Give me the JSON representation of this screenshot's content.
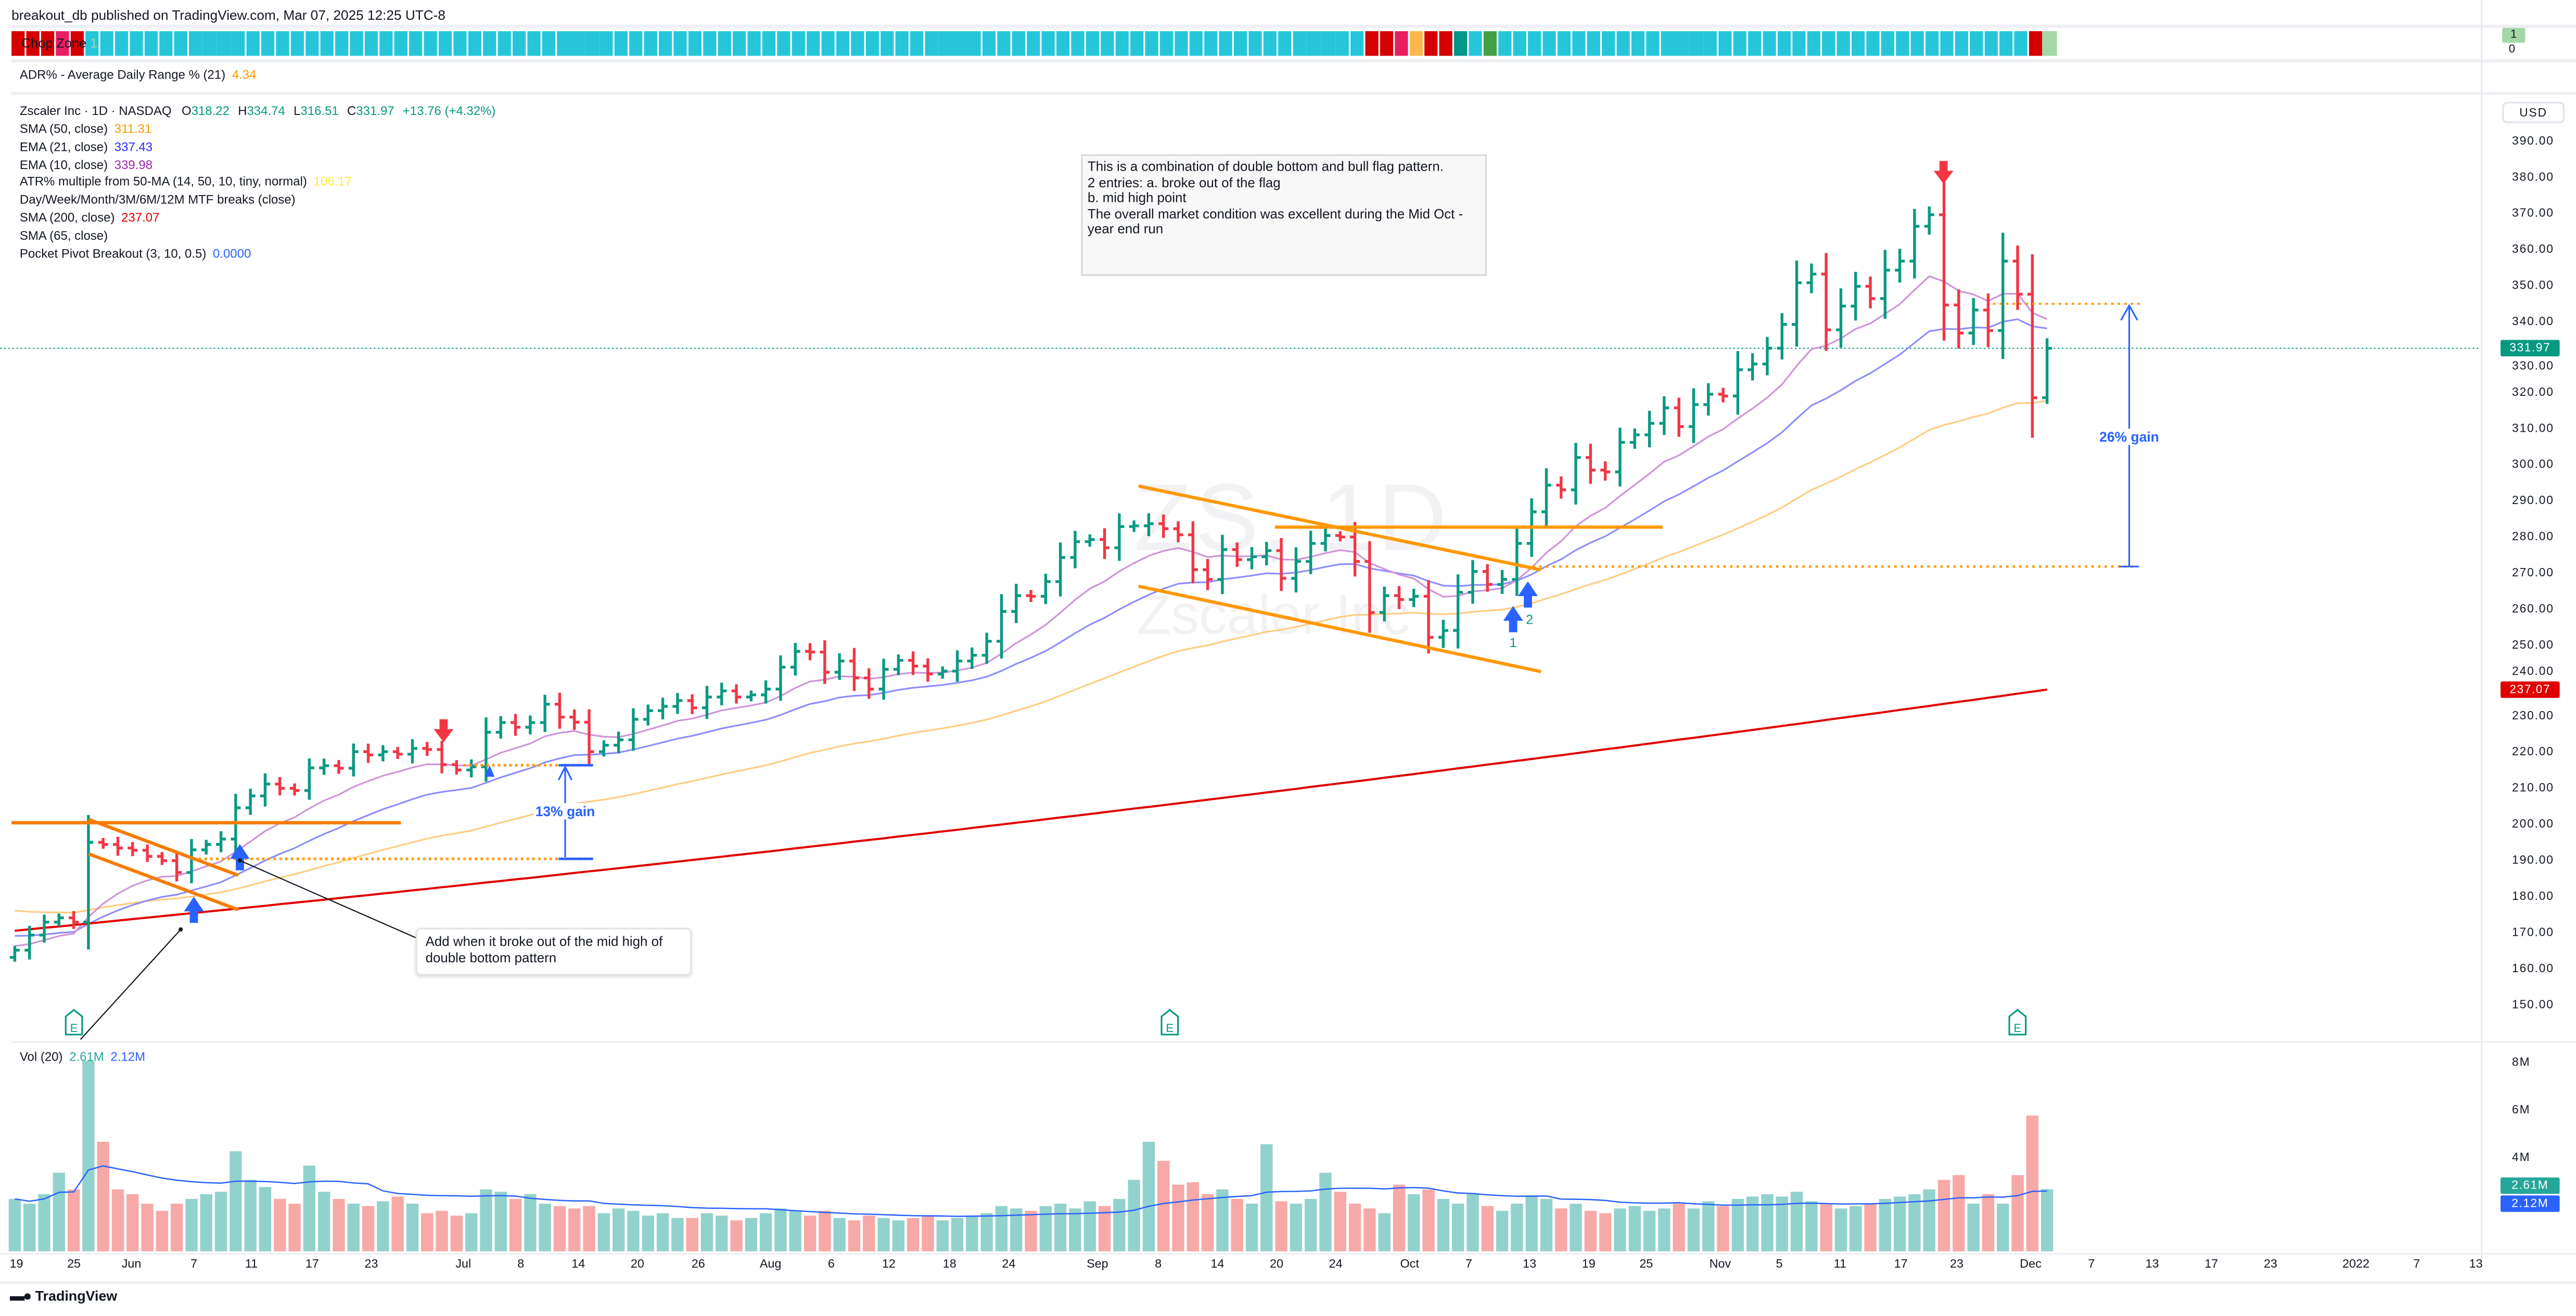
{
  "header": {
    "published": "breakout_db published on TradingView.com, Mar 07, 2025 12:25 UTC-8"
  },
  "chop_zone": {
    "label": "Chop Zone",
    "value": "1",
    "right_value": "1",
    "right_zero": "0",
    "colors": {
      "R": "#d50000",
      "P": "#e91e63",
      "O": "#ffb74d",
      "T": "#009688",
      "G": "#43a047",
      "C": "#26c6da",
      "L": "#a5d6a7"
    },
    "runs": [
      [
        "R",
        3
      ],
      [
        "P",
        1
      ],
      [
        "R",
        1
      ],
      [
        "C",
        87
      ],
      [
        "R",
        2
      ],
      [
        "P",
        1
      ],
      [
        "O",
        1
      ],
      [
        "R",
        2
      ],
      [
        "T",
        1
      ],
      [
        "C",
        1
      ],
      [
        "G",
        1
      ],
      [
        "C",
        36
      ],
      [
        "R",
        1
      ],
      [
        "L",
        1
      ]
    ]
  },
  "adr": {
    "label": "ADR% - Average Daily Range % (21)",
    "value": "4.34",
    "color": "#ff9800"
  },
  "symbol": {
    "name": "Zscaler Inc · 1D · NASDAQ",
    "o_label": "O",
    "o": "318.22",
    "h_label": "H",
    "h": "334.74",
    "l_label": "L",
    "l": "316.51",
    "c_label": "C",
    "c": "331.97",
    "change": "+13.76 (+4.32%)"
  },
  "indicators": [
    {
      "label": "SMA (50, close)",
      "value": "311.31",
      "color": "#ff9800"
    },
    {
      "label": "EMA (21, close)",
      "value": "337.43",
      "color": "#2b2bff"
    },
    {
      "label": "EMA (10, close)",
      "value": "339.98",
      "color": "#9c27b0"
    },
    {
      "label": "ATR% multiple from 50-MA (14, 50, 10, tiny, normal)",
      "value": "106.17",
      "color": "#ffeb3b"
    },
    {
      "label": "Day/Week/Month/3M/6M/12M MTF breaks (close)",
      "value": "",
      "color": "#131722"
    },
    {
      "label": "SMA (200, close)",
      "value": "237.07",
      "color": "#e00000"
    },
    {
      "label": "SMA (65, close)",
      "value": "",
      "color": "#131722"
    },
    {
      "label": "Pocket Pivot Breakout (3, 10, 0.5)",
      "value": "0.0000",
      "color": "#2962ff"
    }
  ],
  "watermark": {
    "symbol": "ZS, 1D",
    "name": "Zscaler Inc"
  },
  "annotations": {
    "note": "This is a combination of double bottom and bull flag pattern.\n2 entries: a. broke out of the flag\nb. mid high point\nThe overall market condition was excellent during the Mid Oct - year end run",
    "callout": "Add when it broke out of the mid high of double bottom pattern",
    "gain1": "13% gain",
    "gain2": "26% gain",
    "entry1": "1",
    "entry2": "2",
    "earnings_marker": "E"
  },
  "price_axis": {
    "currency": "USD",
    "ticks": [
      "390.00",
      "380.00",
      "370.00",
      "360.00",
      "350.00",
      "340.00",
      "330.00",
      "320.00",
      "310.00",
      "300.00",
      "290.00",
      "280.00",
      "270.00",
      "260.00",
      "250.00",
      "240.00",
      "230.00",
      "220.00",
      "210.00",
      "200.00",
      "190.00",
      "180.00",
      "170.00",
      "160.00",
      "150.00"
    ],
    "last_price": "331.97",
    "last_price_color": "#089981",
    "sma200_tag": "237.07",
    "sma200_color": "#e00000"
  },
  "volume": {
    "label": "Vol (20)",
    "value": "2.61M",
    "ma_value": "2.12M",
    "ticks": [
      "8M",
      "6M",
      "4M"
    ],
    "tag_value": "2.61M",
    "tag_ma": "2.12M"
  },
  "time_axis": {
    "labels": [
      "19",
      "25",
      "Jun",
      "7",
      "11",
      "17",
      "23",
      "Jul",
      "8",
      "14",
      "20",
      "26",
      "Aug",
      "6",
      "12",
      "18",
      "24",
      "Sep",
      "8",
      "14",
      "20",
      "24",
      "Oct",
      "7",
      "13",
      "19",
      "25",
      "Nov",
      "5",
      "11",
      "17",
      "23",
      "Dec",
      "7",
      "13",
      "17",
      "23",
      "2022",
      "7",
      "13"
    ]
  },
  "footer": {
    "brand": "TradingView"
  },
  "chart_data": {
    "type": "ohlc-bar",
    "ylim": [
      145,
      395
    ],
    "colors": {
      "up": "#089981",
      "down": "#f23645"
    },
    "close": [
      164.6,
      168.8,
      172.4,
      173.6,
      172.4,
      194.6,
      194,
      193,
      192.4,
      190.7,
      189.5,
      186.2,
      192.5,
      194,
      195.5,
      204.2,
      207.5,
      210.8,
      209.6,
      209,
      215.3,
      215.9,
      215.2,
      219.8,
      218.9,
      219.8,
      219.1,
      220.7,
      220.4,
      216.2,
      214.7,
      215.6,
      225.2,
      227.9,
      226.6,
      227.9,
      233,
      229.4,
      228,
      219.8,
      221.6,
      223.1,
      228.8,
      231.2,
      232.4,
      234,
      232,
      235,
      236.7,
      235,
      235.6,
      237.2,
      243.3,
      247.7,
      247.5,
      241.9,
      245,
      240.3,
      237.2,
      242.7,
      245.2,
      243.6,
      241.4,
      242.2,
      245,
      246.6,
      250.5,
      258.8,
      263.2,
      263,
      267.1,
      273.8,
      278.2,
      278.8,
      276.5,
      282.4,
      282.6,
      283.2,
      281.8,
      280.1,
      270.4,
      267.7,
      276,
      273.2,
      274,
      275.7,
      268,
      272.7,
      277.7,
      279.9,
      279.5,
      272.7,
      258.5,
      263.2,
      262.1,
      263,
      251.6,
      253.5,
      264.1,
      269.9,
      266.3,
      267.7,
      277.7,
      286.5,
      293.9,
      292.6,
      301.6,
      298.1,
      297.6,
      305.8,
      307.9,
      311.1,
      315.4,
      310.2,
      316.3,
      319.2,
      318.7,
      326,
      327.6,
      332,
      338.6,
      350.2,
      352.6,
      337.1,
      343.7,
      349.2,
      345.8,
      353.7,
      356.2,
      365.9,
      369.1,
      344,
      336.2,
      342.6,
      336.9,
      356.2,
      347,
      318.2,
      331.97
    ],
    "volume_millions": [
      2.2,
      2.0,
      2.4,
      3.3,
      2.6,
      8.0,
      4.6,
      2.6,
      2.4,
      2.0,
      1.7,
      2.0,
      2.2,
      2.4,
      2.5,
      4.2,
      3.0,
      2.7,
      2.2,
      2.0,
      3.6,
      2.5,
      2.2,
      2.0,
      1.9,
      2.1,
      2.3,
      2.0,
      1.6,
      1.7,
      1.5,
      1.6,
      2.6,
      2.5,
      2.2,
      2.4,
      2.0,
      1.9,
      1.8,
      1.9,
      1.6,
      1.8,
      1.7,
      1.5,
      1.6,
      1.4,
      1.4,
      1.6,
      1.5,
      1.3,
      1.4,
      1.6,
      1.8,
      1.7,
      1.5,
      1.7,
      1.4,
      1.3,
      1.5,
      1.4,
      1.3,
      1.4,
      1.5,
      1.3,
      1.4,
      1.5,
      1.6,
      1.9,
      1.8,
      1.7,
      1.9,
      2.0,
      1.8,
      2.1,
      1.9,
      2.2,
      3.0,
      4.6,
      3.8,
      2.8,
      2.9,
      2.4,
      2.6,
      2.2,
      2.0,
      4.5,
      2.1,
      2.0,
      2.2,
      3.3,
      2.5,
      2.0,
      1.8,
      1.6,
      2.8,
      2.4,
      2.6,
      2.2,
      2.0,
      2.4,
      1.9,
      1.7,
      2.0,
      2.3,
      2.2,
      1.8,
      2.0,
      1.7,
      1.6,
      1.8,
      1.9,
      1.7,
      1.8,
      2.0,
      1.8,
      2.1,
      1.9,
      2.2,
      2.3,
      2.4,
      2.3,
      2.5,
      2.1,
      2.0,
      1.8,
      1.9,
      2.0,
      2.2,
      2.3,
      2.4,
      2.6,
      3.0,
      3.2,
      2.0,
      2.4,
      2.0,
      3.2,
      5.7,
      2.61
    ],
    "sma200": {
      "start": 170,
      "end": 237.07
    },
    "volume_ylim": [
      0,
      8.5
    ]
  }
}
